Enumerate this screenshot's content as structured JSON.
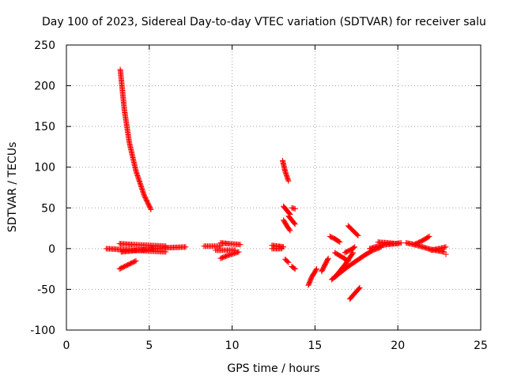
{
  "chart_data": {
    "type": "scatter",
    "title": "Day 100 of 2023, Sidereal Day-to-day VTEC variation (SDTVAR) for receiver salu",
    "xlabel": "GPS time / hours",
    "ylabel": "SDTVAR / TECUs",
    "xlim": [
      0,
      25
    ],
    "ylim": [
      -100,
      250
    ],
    "xticks": [
      "0",
      "5",
      "10",
      "15",
      "20",
      "25"
    ],
    "yticks": [
      "-100",
      "-50",
      "0",
      "50",
      "100",
      "150",
      "200",
      "250"
    ],
    "grid": true,
    "marker": "+",
    "color": "#ff0000",
    "segments": [
      {
        "x": [
          3.25,
          3.5,
          3.8,
          4.2,
          4.7,
          5.1
        ],
        "y": [
          220,
          170,
          130,
          95,
          65,
          48
        ]
      },
      {
        "x": [
          2.4,
          3.2,
          4.0,
          5.0,
          6.0
        ],
        "y": [
          0,
          -1,
          -2,
          -3,
          -4
        ]
      },
      {
        "x": [
          3.2,
          4.0,
          5.0,
          6.0
        ],
        "y": [
          6,
          5,
          4,
          3
        ]
      },
      {
        "x": [
          3.3,
          3.8,
          4.3,
          4.8,
          5.3,
          6.0
        ],
        "y": [
          -4,
          -3,
          -2,
          -1,
          0,
          1
        ]
      },
      {
        "x": [
          3.2,
          3.7,
          4.2
        ],
        "y": [
          -25,
          -20,
          -15
        ]
      },
      {
        "x": [
          6.0,
          6.6,
          7.2
        ],
        "y": [
          1,
          1.5,
          2
        ]
      },
      {
        "x": [
          8.3,
          8.8,
          9.3
        ],
        "y": [
          3,
          3,
          3
        ]
      },
      {
        "x": [
          9.3,
          9.8,
          10.5
        ],
        "y": [
          7,
          6,
          5
        ]
      },
      {
        "x": [
          9.3,
          9.8,
          10.4
        ],
        "y": [
          -12,
          -8,
          -4
        ]
      },
      {
        "x": [
          9.0,
          9.5,
          10.2
        ],
        "y": [
          -2,
          -2,
          -2
        ]
      },
      {
        "x": [
          12.4,
          12.8,
          13.1
        ],
        "y": [
          4,
          3,
          2
        ]
      },
      {
        "x": [
          12.4,
          12.8,
          13.0
        ],
        "y": [
          0,
          0,
          0
        ]
      },
      {
        "x": [
          13.05,
          13.2,
          13.4
        ],
        "y": [
          108,
          95,
          83
        ]
      },
      {
        "x": [
          13.1,
          13.3,
          13.5
        ],
        "y": [
          52,
          47,
          42
        ]
      },
      {
        "x": [
          13.1,
          13.3,
          13.5
        ],
        "y": [
          35,
          28,
          22
        ]
      },
      {
        "x": [
          13.4,
          13.6,
          13.8
        ],
        "y": [
          40,
          35,
          30
        ]
      },
      {
        "x": [
          13.6,
          13.8
        ],
        "y": [
          50,
          49
        ]
      },
      {
        "x": [
          13.2,
          13.4
        ],
        "y": [
          -13,
          -17
        ]
      },
      {
        "x": [
          13.6,
          13.8
        ],
        "y": [
          -22,
          -25
        ]
      },
      {
        "x": [
          14.6,
          14.8,
          15.1
        ],
        "y": [
          -45,
          -35,
          -25
        ]
      },
      {
        "x": [
          15.4,
          15.6,
          15.8
        ],
        "y": [
          -28,
          -20,
          -12
        ]
      },
      {
        "x": [
          15.9,
          16.2,
          16.5
        ],
        "y": [
          15,
          12,
          8
        ]
      },
      {
        "x": [
          16.2,
          16.6,
          17.0
        ],
        "y": [
          -5,
          -10,
          -15
        ]
      },
      {
        "x": [
          16.0,
          16.5,
          17.0,
          17.5,
          18.0,
          18.5,
          19.0
        ],
        "y": [
          -38,
          -30,
          -22,
          -15,
          -8,
          -2,
          2
        ]
      },
      {
        "x": [
          16.2,
          16.8,
          17.3
        ],
        "y": [
          -35,
          -20,
          -5
        ]
      },
      {
        "x": [
          16.8,
          17.2,
          17.4
        ],
        "y": [
          -5,
          -1,
          2
        ]
      },
      {
        "x": [
          17.0,
          17.3,
          17.6
        ],
        "y": [
          28,
          22,
          16
        ]
      },
      {
        "x": [
          17.1,
          17.4,
          17.7
        ],
        "y": [
          -62,
          -55,
          -48
        ]
      },
      {
        "x": [
          18.3,
          18.8,
          19.3,
          19.8,
          20.2
        ],
        "y": [
          0,
          3,
          5,
          6,
          7
        ]
      },
      {
        "x": [
          18.8,
          19.4,
          20.0
        ],
        "y": [
          8,
          7,
          6
        ]
      },
      {
        "x": [
          20.5,
          21.0,
          21.5,
          22.0,
          22.5,
          22.8
        ],
        "y": [
          7,
          5,
          2,
          -1,
          -3,
          -4
        ]
      },
      {
        "x": [
          21.0,
          21.5,
          21.9
        ],
        "y": [
          5,
          10,
          15
        ]
      },
      {
        "x": [
          22.0,
          22.5,
          22.9
        ],
        "y": [
          -2,
          0,
          2
        ]
      },
      {
        "x": [
          22.9
        ],
        "y": [
          -7
        ]
      }
    ]
  }
}
